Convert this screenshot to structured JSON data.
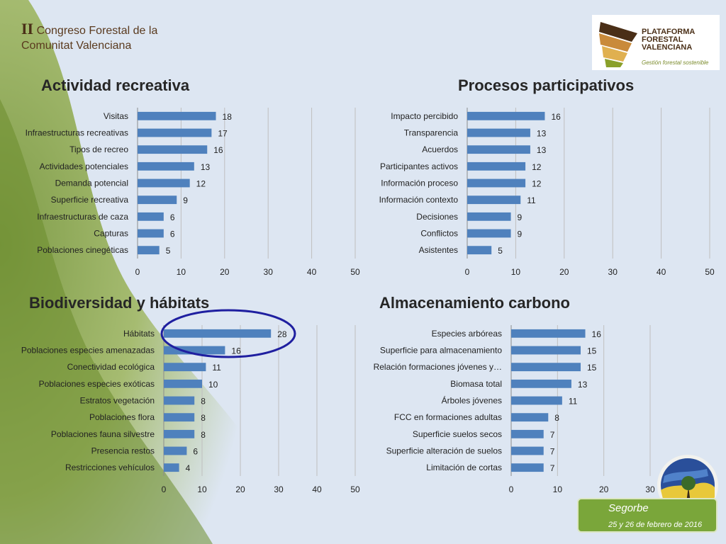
{
  "header": {
    "roman": "II",
    "title_line1": "Congreso Forestal de la",
    "title_line2": "Comunitat Valenciana"
  },
  "logo": {
    "line1": "PLATAFORMA",
    "line2": "FORESTAL",
    "line3": "VALENCIANA",
    "tagline": "Gestión forestal sostenible"
  },
  "footer": {
    "location": "Segorbe",
    "dates": "25 y 26 de febrero de 2016"
  },
  "colors": {
    "bar": "#4f81bd",
    "grid": "#bfbfbf",
    "highlight_ellipse": "#1f1fa0"
  },
  "chart_data": [
    {
      "type": "bar",
      "orientation": "horizontal",
      "title": "Actividad recreativa",
      "categories": [
        "Visitas",
        "Infraestructuras recreativas",
        "Tipos de recreo",
        "Actividades potenciales",
        "Demanda potencial",
        "Superficie recreativa",
        "Infraestructuras de caza",
        "Capturas",
        "Poblaciones cinegéticas"
      ],
      "values": [
        18,
        17,
        16,
        13,
        12,
        9,
        6,
        6,
        5
      ],
      "xlim": [
        0,
        50
      ],
      "ticks": [
        0,
        10,
        20,
        30,
        40,
        50
      ],
      "grid": true
    },
    {
      "type": "bar",
      "orientation": "horizontal",
      "title": "Procesos participativos",
      "categories": [
        "Impacto percibido",
        "Transparencia",
        "Acuerdos",
        "Participantes activos",
        "Información proceso",
        "Información contexto",
        "Decisiones",
        "Conflictos",
        "Asistentes"
      ],
      "values": [
        16,
        13,
        13,
        12,
        12,
        11,
        9,
        9,
        5
      ],
      "xlim": [
        0,
        50
      ],
      "ticks": [
        0,
        10,
        20,
        30,
        40,
        50
      ],
      "grid": true
    },
    {
      "type": "bar",
      "orientation": "horizontal",
      "title": "Biodiversidad y hábitats",
      "categories": [
        "Hábitats",
        "Poblaciones especies amenazadas",
        "Conectividad ecológica",
        "Poblaciones especies exóticas",
        "Estratos vegetación",
        "Poblaciones flora",
        "Poblaciones fauna silvestre",
        "Presencia restos",
        "Restricciones vehículos"
      ],
      "values": [
        28,
        16,
        11,
        10,
        8,
        8,
        8,
        6,
        4
      ],
      "xlim": [
        0,
        50
      ],
      "ticks": [
        0,
        10,
        20,
        30,
        40,
        50
      ],
      "grid": true,
      "annotation": "ellipse highlighting Hábitats and Poblaciones especies amenazadas"
    },
    {
      "type": "bar",
      "orientation": "horizontal",
      "title": "Almacenamiento carbono",
      "categories": [
        "Especies arbóreas",
        "Superficie para almacenamiento",
        "Relación formaciones jóvenes y…",
        "Biomasa total",
        "Árboles jóvenes",
        "FCC en formaciones adultas",
        "Superficie suelos secos",
        "Superficie alteración de suelos",
        "Limitación de cortas"
      ],
      "values": [
        16,
        15,
        15,
        13,
        11,
        8,
        7,
        7,
        7
      ],
      "xlim": [
        0,
        30
      ],
      "ticks": [
        0,
        10,
        20,
        30
      ],
      "grid": true
    }
  ]
}
